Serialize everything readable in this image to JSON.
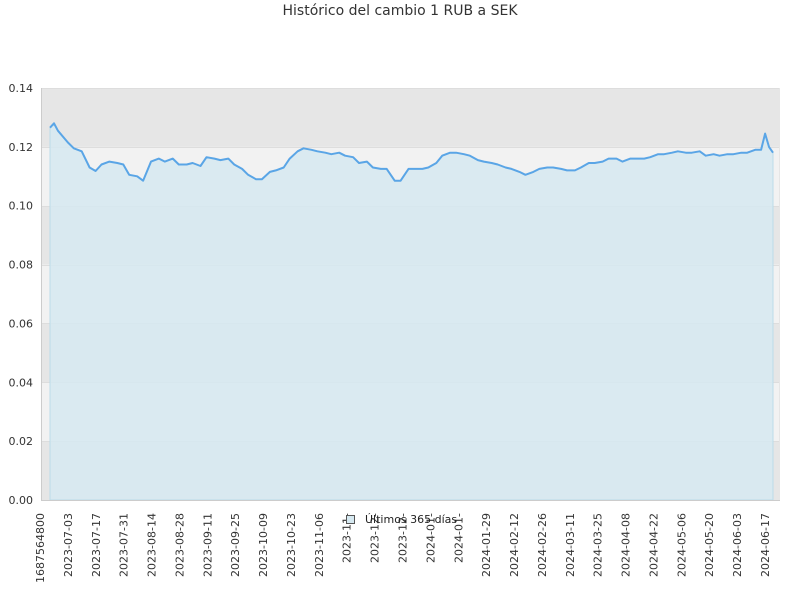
{
  "chart_data": {
    "type": "area",
    "title": "Histórico del cambio 1 RUB a SEK",
    "xlabel": "",
    "ylabel": "",
    "ylim": [
      0,
      0.14
    ],
    "y_ticks": [
      "0.00",
      "0.02",
      "0.04",
      "0.06",
      "0.08",
      "0.10",
      "0.12",
      "0.14"
    ],
    "x_tick_labels": [
      "1687564800",
      "2023-07-03",
      "2023-07-17",
      "2023-07-31",
      "2023-08-14",
      "2023-08-28",
      "2023-09-11",
      "2023-09-25",
      "2023-10-09",
      "2023-10-23",
      "2023-11-06",
      "2023-11-",
      "2023-12-",
      "2023-12-",
      "2024-01-",
      "2024-01-",
      "2024-01-29",
      "2024-02-12",
      "2024-02-26",
      "2024-03-11",
      "2024-03-25",
      "2024-04-08",
      "2024-04-22",
      "2024-05-06",
      "2024-05-20",
      "2024-06-03",
      "2024-06-17"
    ],
    "grid": true,
    "legend_position": "bottom-center",
    "colors": {
      "line": "#5aa5e6",
      "fill": "#d6e9f1",
      "band_light": "#f2f2f2",
      "band_dark": "#e6e6e6",
      "axis": "#cccccc"
    },
    "series": [
      {
        "name": "Últimos 365 días",
        "x": [
          "2023-06-24",
          "2023-06-26",
          "2023-06-28",
          "2023-07-03",
          "2023-07-06",
          "2023-07-10",
          "2023-07-14",
          "2023-07-17",
          "2023-07-20",
          "2023-07-24",
          "2023-07-28",
          "2023-07-31",
          "2023-08-03",
          "2023-08-07",
          "2023-08-10",
          "2023-08-14",
          "2023-08-18",
          "2023-08-21",
          "2023-08-25",
          "2023-08-28",
          "2023-09-01",
          "2023-09-04",
          "2023-09-08",
          "2023-09-11",
          "2023-09-15",
          "2023-09-18",
          "2023-09-22",
          "2023-09-25",
          "2023-09-29",
          "2023-10-02",
          "2023-10-06",
          "2023-10-09",
          "2023-10-13",
          "2023-10-16",
          "2023-10-20",
          "2023-10-23",
          "2023-10-27",
          "2023-10-30",
          "2023-11-03",
          "2023-11-06",
          "2023-11-10",
          "2023-11-13",
          "2023-11-17",
          "2023-11-20",
          "2023-11-24",
          "2023-11-27",
          "2023-12-01",
          "2023-12-04",
          "2023-12-08",
          "2023-12-11",
          "2023-12-15",
          "2023-12-18",
          "2023-12-22",
          "2023-12-25",
          "2023-12-29",
          "2024-01-01",
          "2024-01-05",
          "2024-01-08",
          "2024-01-12",
          "2024-01-15",
          "2024-01-19",
          "2024-01-22",
          "2024-01-26",
          "2024-01-29",
          "2024-02-02",
          "2024-02-05",
          "2024-02-09",
          "2024-02-12",
          "2024-02-16",
          "2024-02-19",
          "2024-02-23",
          "2024-02-26",
          "2024-03-01",
          "2024-03-04",
          "2024-03-08",
          "2024-03-11",
          "2024-03-15",
          "2024-03-18",
          "2024-03-22",
          "2024-03-25",
          "2024-03-29",
          "2024-04-01",
          "2024-04-05",
          "2024-04-08",
          "2024-04-12",
          "2024-04-15",
          "2024-04-19",
          "2024-04-22",
          "2024-04-26",
          "2024-04-29",
          "2024-05-03",
          "2024-05-06",
          "2024-05-10",
          "2024-05-13",
          "2024-05-17",
          "2024-05-20",
          "2024-05-24",
          "2024-05-27",
          "2024-05-31",
          "2024-06-03",
          "2024-06-07",
          "2024-06-10",
          "2024-06-14",
          "2024-06-17",
          "2024-06-19",
          "2024-06-21",
          "2024-06-23"
        ],
        "values": [
          0.1265,
          0.128,
          0.1255,
          0.1215,
          0.1195,
          0.1185,
          0.113,
          0.1118,
          0.114,
          0.115,
          0.1145,
          0.114,
          0.1105,
          0.11,
          0.1085,
          0.115,
          0.116,
          0.115,
          0.116,
          0.114,
          0.114,
          0.1145,
          0.1135,
          0.1165,
          0.116,
          0.1155,
          0.116,
          0.114,
          0.1125,
          0.1105,
          0.109,
          0.109,
          0.1115,
          0.112,
          0.113,
          0.116,
          0.1185,
          0.1195,
          0.119,
          0.1185,
          0.118,
          0.1175,
          0.118,
          0.117,
          0.1165,
          0.1145,
          0.115,
          0.113,
          0.1125,
          0.1125,
          0.1085,
          0.1085,
          0.1125,
          0.1125,
          0.1125,
          0.113,
          0.1145,
          0.117,
          0.118,
          0.118,
          0.1175,
          0.117,
          0.1155,
          0.115,
          0.1145,
          0.114,
          0.113,
          0.1125,
          0.1115,
          0.1105,
          0.1115,
          0.1125,
          0.113,
          0.113,
          0.1125,
          0.112,
          0.112,
          0.113,
          0.1145,
          0.1145,
          0.115,
          0.116,
          0.116,
          0.115,
          0.116,
          0.116,
          0.116,
          0.1165,
          0.1175,
          0.1175,
          0.118,
          0.1185,
          0.118,
          0.118,
          0.1185,
          0.117,
          0.1175,
          0.117,
          0.1175,
          0.1175,
          0.118,
          0.118,
          0.119,
          0.119,
          0.1245,
          0.12,
          0.118
        ]
      }
    ]
  }
}
